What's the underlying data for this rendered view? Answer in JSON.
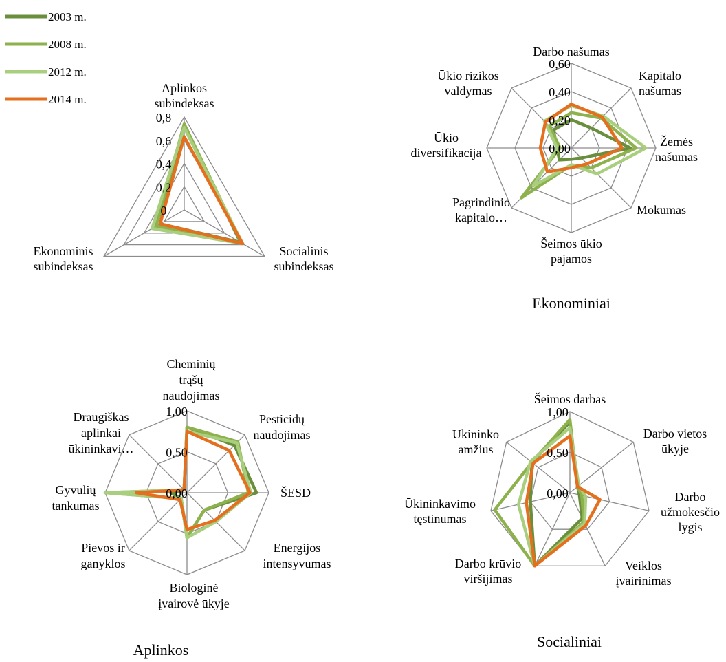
{
  "colors": {
    "s2003": "#6a8f3c",
    "s2008": "#8db24d",
    "s2012": "#a9cf7e",
    "s2014": "#e4701f"
  },
  "legend": [
    "2003 m.",
    "2008 m.",
    "2012 m.",
    "2014 m."
  ],
  "chart_data": [
    {
      "type": "radar",
      "title": "",
      "axes": [
        [
          "Aplinkos",
          "subindeksas"
        ],
        [
          "Socialinis",
          "subindeksas"
        ],
        [
          "Ekonominis",
          "subindeksas"
        ]
      ],
      "range": [
        0,
        0.8
      ],
      "tick_labels": [
        "0",
        "0,2",
        "0,4",
        "0,6",
        "0,8"
      ],
      "series": [
        {
          "name": "2003 m.",
          "values": [
            0.72,
            0.56,
            0.24
          ]
        },
        {
          "name": "2008 m.",
          "values": [
            0.74,
            0.57,
            0.28
          ]
        },
        {
          "name": "2012 m.",
          "values": [
            0.71,
            0.58,
            0.32
          ]
        },
        {
          "name": "2014 m.",
          "values": [
            0.63,
            0.58,
            0.24
          ]
        }
      ]
    },
    {
      "type": "radar",
      "title": "Ekonominiai",
      "axes": [
        [
          "Darbo našumas"
        ],
        [
          "Kapitalo",
          "našumas"
        ],
        [
          "Žemės",
          "našumas"
        ],
        [
          "Mokumas"
        ],
        [
          "Šeimos ūkio",
          "pajamos"
        ],
        [
          "Pagrindinio",
          "kapitalo…"
        ],
        [
          "Ūkio",
          "diversifikacija"
        ],
        [
          "Ūkio rizikos",
          "valdymas"
        ]
      ],
      "range": [
        0,
        0.6
      ],
      "tick_labels": [
        "0,00",
        "0,20",
        "0,40",
        "0,60"
      ],
      "series": [
        {
          "name": "2003 m.",
          "values": [
            0.2,
            0.2,
            0.42,
            0.1,
            0.08,
            0.12,
            0.1,
            0.18
          ]
        },
        {
          "name": "2008 m.",
          "values": [
            0.25,
            0.3,
            0.46,
            0.2,
            0.12,
            0.5,
            0.08,
            0.22
          ]
        },
        {
          "name": "2012 m.",
          "values": [
            0.3,
            0.32,
            0.53,
            0.26,
            0.12,
            0.38,
            0.1,
            0.27
          ]
        },
        {
          "name": "2014 m.",
          "values": [
            0.31,
            0.31,
            0.36,
            0.16,
            0.14,
            0.24,
            0.22,
            0.26
          ]
        }
      ]
    },
    {
      "type": "radar",
      "title": "Aplinkos",
      "axes": [
        [
          "Cheminių",
          "trąšų",
          "naudojimas"
        ],
        [
          "Pesticidų",
          "naudojimas"
        ],
        [
          "ŠESD"
        ],
        [
          "Energijos",
          "intensyvumas"
        ],
        [
          "Biologinė",
          "įvairovė ūkyje"
        ],
        [
          "Pievos ir",
          "ganyklos"
        ],
        [
          "Gyvulių",
          "tankumas"
        ],
        [
          "Draugiškas",
          "aplinkai",
          "ūkininkavi…"
        ]
      ],
      "range": [
        0,
        1.0
      ],
      "tick_labels": [
        "0,00",
        "0,50",
        "1,00"
      ],
      "series": [
        {
          "name": "2003 m.",
          "values": [
            0.8,
            0.82,
            0.85,
            0.3,
            0.55,
            0.1,
            0.2,
            0.05
          ]
        },
        {
          "name": "2008 m.",
          "values": [
            0.8,
            0.88,
            0.75,
            0.3,
            0.55,
            0.1,
            1.0,
            0.05
          ]
        },
        {
          "name": "2012 m.",
          "values": [
            0.75,
            0.86,
            0.78,
            0.5,
            0.55,
            0.1,
            1.0,
            0.05
          ]
        },
        {
          "name": "2014 m.",
          "values": [
            0.75,
            0.73,
            0.77,
            0.48,
            0.45,
            0.12,
            0.62,
            0.05
          ]
        }
      ]
    },
    {
      "type": "radar",
      "title": "Socialiniai",
      "axes": [
        [
          "Šeimos darbas"
        ],
        [
          "Darbo vietos",
          "ūkyje"
        ],
        [
          "Darbo",
          "užmokesčio",
          "lygis"
        ],
        [
          "Veiklos",
          "įvairinimas"
        ],
        [
          "Darbo krūvio",
          "viršijimas"
        ],
        [
          "Ūkininkavimo",
          "tęstinumas"
        ],
        [
          "Ūkininko",
          "amžius"
        ]
      ],
      "range": [
        0,
        1.0
      ],
      "tick_labels": [
        "0,00",
        "0,50",
        "1,00"
      ],
      "series": [
        {
          "name": "2003 m.",
          "values": [
            0.87,
            0.12,
            0.12,
            0.35,
            1.0,
            0.5,
            0.6
          ]
        },
        {
          "name": "2008 m.",
          "values": [
            0.9,
            0.12,
            0.15,
            0.4,
            1.0,
            0.95,
            0.6
          ]
        },
        {
          "name": "2012 m.",
          "values": [
            0.8,
            0.14,
            0.2,
            0.42,
            1.0,
            0.65,
            0.62
          ]
        },
        {
          "name": "2014 m.",
          "values": [
            0.7,
            0.12,
            0.38,
            0.45,
            1.0,
            0.55,
            0.58
          ]
        }
      ]
    }
  ]
}
